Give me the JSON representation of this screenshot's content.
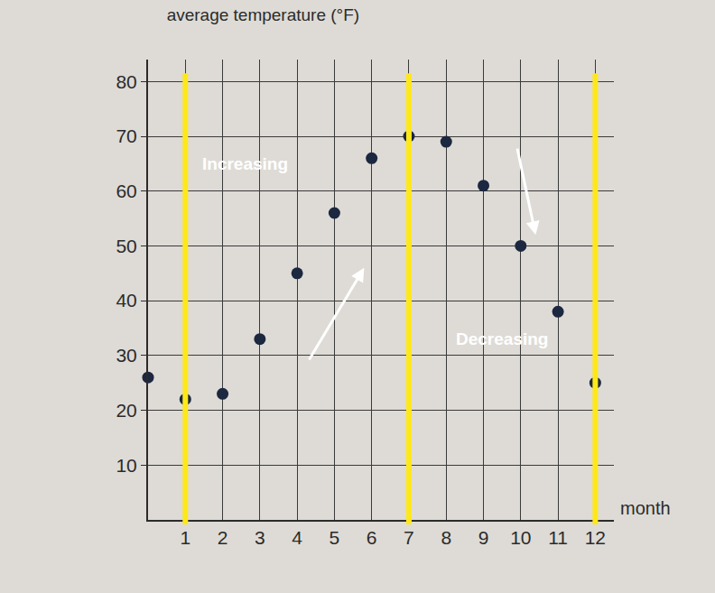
{
  "chart_data": {
    "type": "scatter",
    "title": "average temperature (°F)",
    "x_label": "month",
    "x": [
      0,
      1,
      2,
      3,
      4,
      5,
      6,
      7,
      8,
      9,
      10,
      11,
      12
    ],
    "values": [
      26,
      22,
      23,
      33,
      45,
      56,
      66,
      70,
      69,
      61,
      50,
      38,
      25
    ],
    "color": "#1c2740",
    "marker": "circle",
    "xlim": [
      0,
      12.5
    ],
    "xticks": [
      1,
      2,
      3,
      4,
      5,
      6,
      7,
      8,
      9,
      10,
      11,
      12
    ],
    "ylim": [
      0,
      84
    ],
    "yticks": [
      10,
      20,
      30,
      40,
      50,
      60,
      70,
      80
    ],
    "grid": true,
    "highlight_lines": {
      "x": [
        1,
        7,
        12
      ],
      "color": "#ffe81a"
    },
    "annotations": [
      {
        "text": "Increasing",
        "x": 2.6,
        "y": 65
      },
      {
        "text": "Decreasing",
        "x": 9.5,
        "y": 33
      }
    ],
    "arrows": [
      {
        "x0": 4.3,
        "y0": 29,
        "x1": 5.8,
        "y1": 46
      },
      {
        "x0": 9.9,
        "y0": 68,
        "x1": 10.4,
        "y1": 52
      }
    ]
  }
}
